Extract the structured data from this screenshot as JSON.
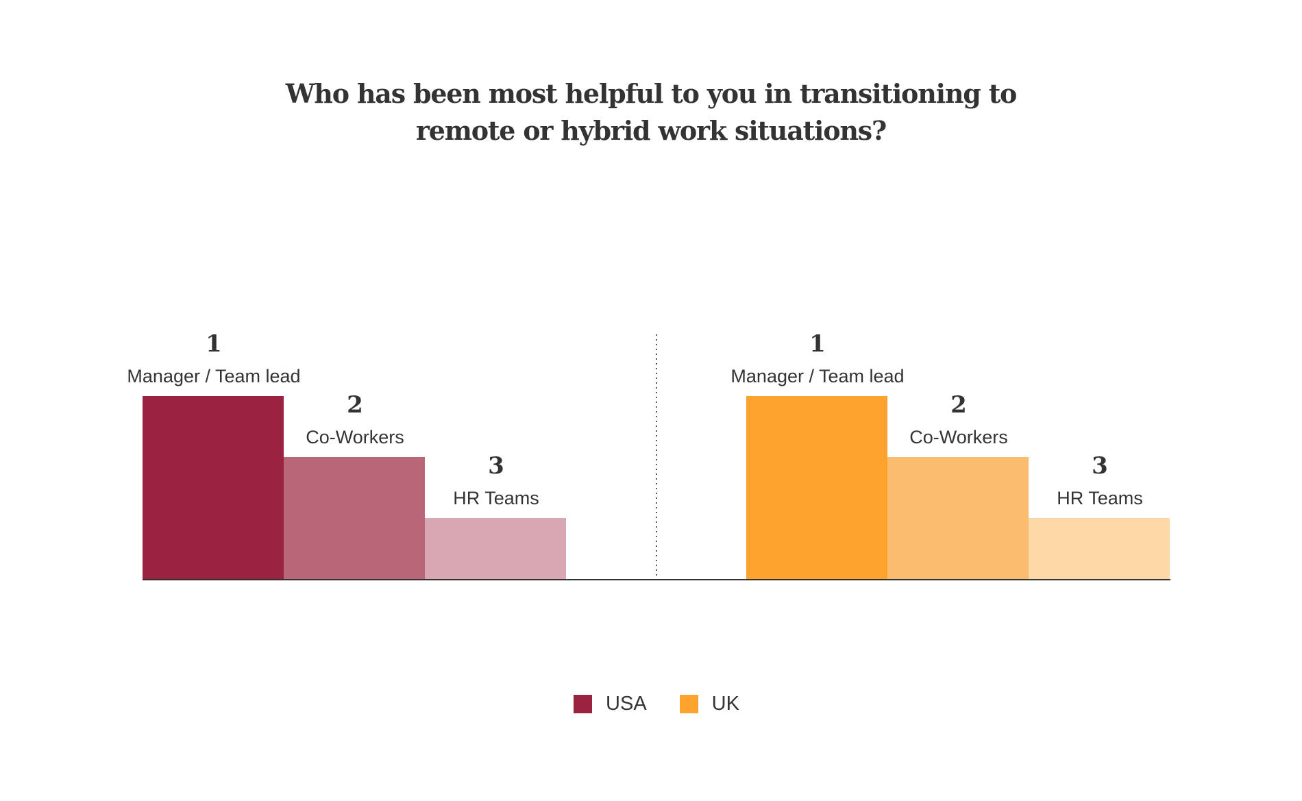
{
  "chart_data": {
    "type": "bar",
    "title": "Who has been most helpful to you in transitioning to remote or hybrid work situations?",
    "title_lines": [
      "Who has been most helpful to you in transitioning to",
      "remote or hybrid work situations?"
    ],
    "categories": [
      "Manager / Team lead",
      "Co-Workers",
      "HR Teams"
    ],
    "ranks": [
      "1",
      "2",
      "3"
    ],
    "series": [
      {
        "name": "USA",
        "values": [
          3,
          2,
          1
        ],
        "colors": [
          "#9a2341",
          "#b96678",
          "#d9a7b3"
        ]
      },
      {
        "name": "UK",
        "values": [
          3,
          2,
          1
        ],
        "colors": [
          "#fea32d",
          "#fabd6f",
          "#fdd9a8"
        ]
      }
    ],
    "xlabel": "",
    "ylabel": "",
    "ylim": [
      0,
      3
    ],
    "grid": false,
    "legend_position": "bottom-center"
  }
}
